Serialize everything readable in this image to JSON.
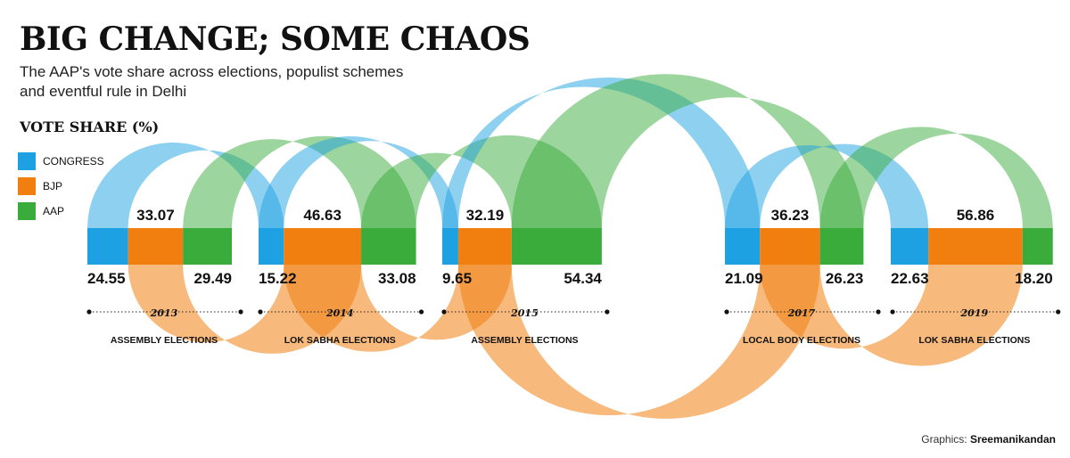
{
  "title": "BIG CHANGE; SOME CHAOS",
  "subtitle": "The AAP's vote share across elections, populist schemes and eventful rule in Delhi",
  "vote_share_title": "VOTE SHARE (%)",
  "legend": [
    {
      "name": "CONGRESS",
      "color": "#1da1e2"
    },
    {
      "name": "BJP",
      "color": "#f07f10"
    },
    {
      "name": "AAP",
      "color": "#3aac3b"
    }
  ],
  "credit": {
    "label": "Graphics:",
    "name": "Sreemanikandan"
  },
  "colors": {
    "congress": "#1da1e2",
    "bjp": "#f07f10",
    "aap": "#3aac3b"
  },
  "chart_data": {
    "type": "bar",
    "orientation": "stacked horizontal",
    "series_order": [
      "CONGRESS",
      "BJP",
      "AAP"
    ],
    "elections": [
      {
        "year": "2013",
        "name": "ASSEMBLY ELECTIONS",
        "congress": 24.55,
        "bjp": 33.07,
        "aap": 29.49
      },
      {
        "year": "2014",
        "name": "LOK SABHA ELECTIONS",
        "congress": 15.22,
        "bjp": 46.63,
        "aap": 33.08
      },
      {
        "year": "2015",
        "name": "ASSEMBLY ELECTIONS",
        "congress": 9.65,
        "bjp": 32.19,
        "aap": 54.34
      },
      {
        "year": "2017",
        "name": "LOCAL BODY ELECTIONS",
        "congress": 21.09,
        "bjp": 36.23,
        "aap": 26.23
      },
      {
        "year": "2019",
        "name": "LOK SABHA ELECTIONS",
        "congress": 22.63,
        "bjp": 56.86,
        "aap": 18.2
      }
    ]
  }
}
